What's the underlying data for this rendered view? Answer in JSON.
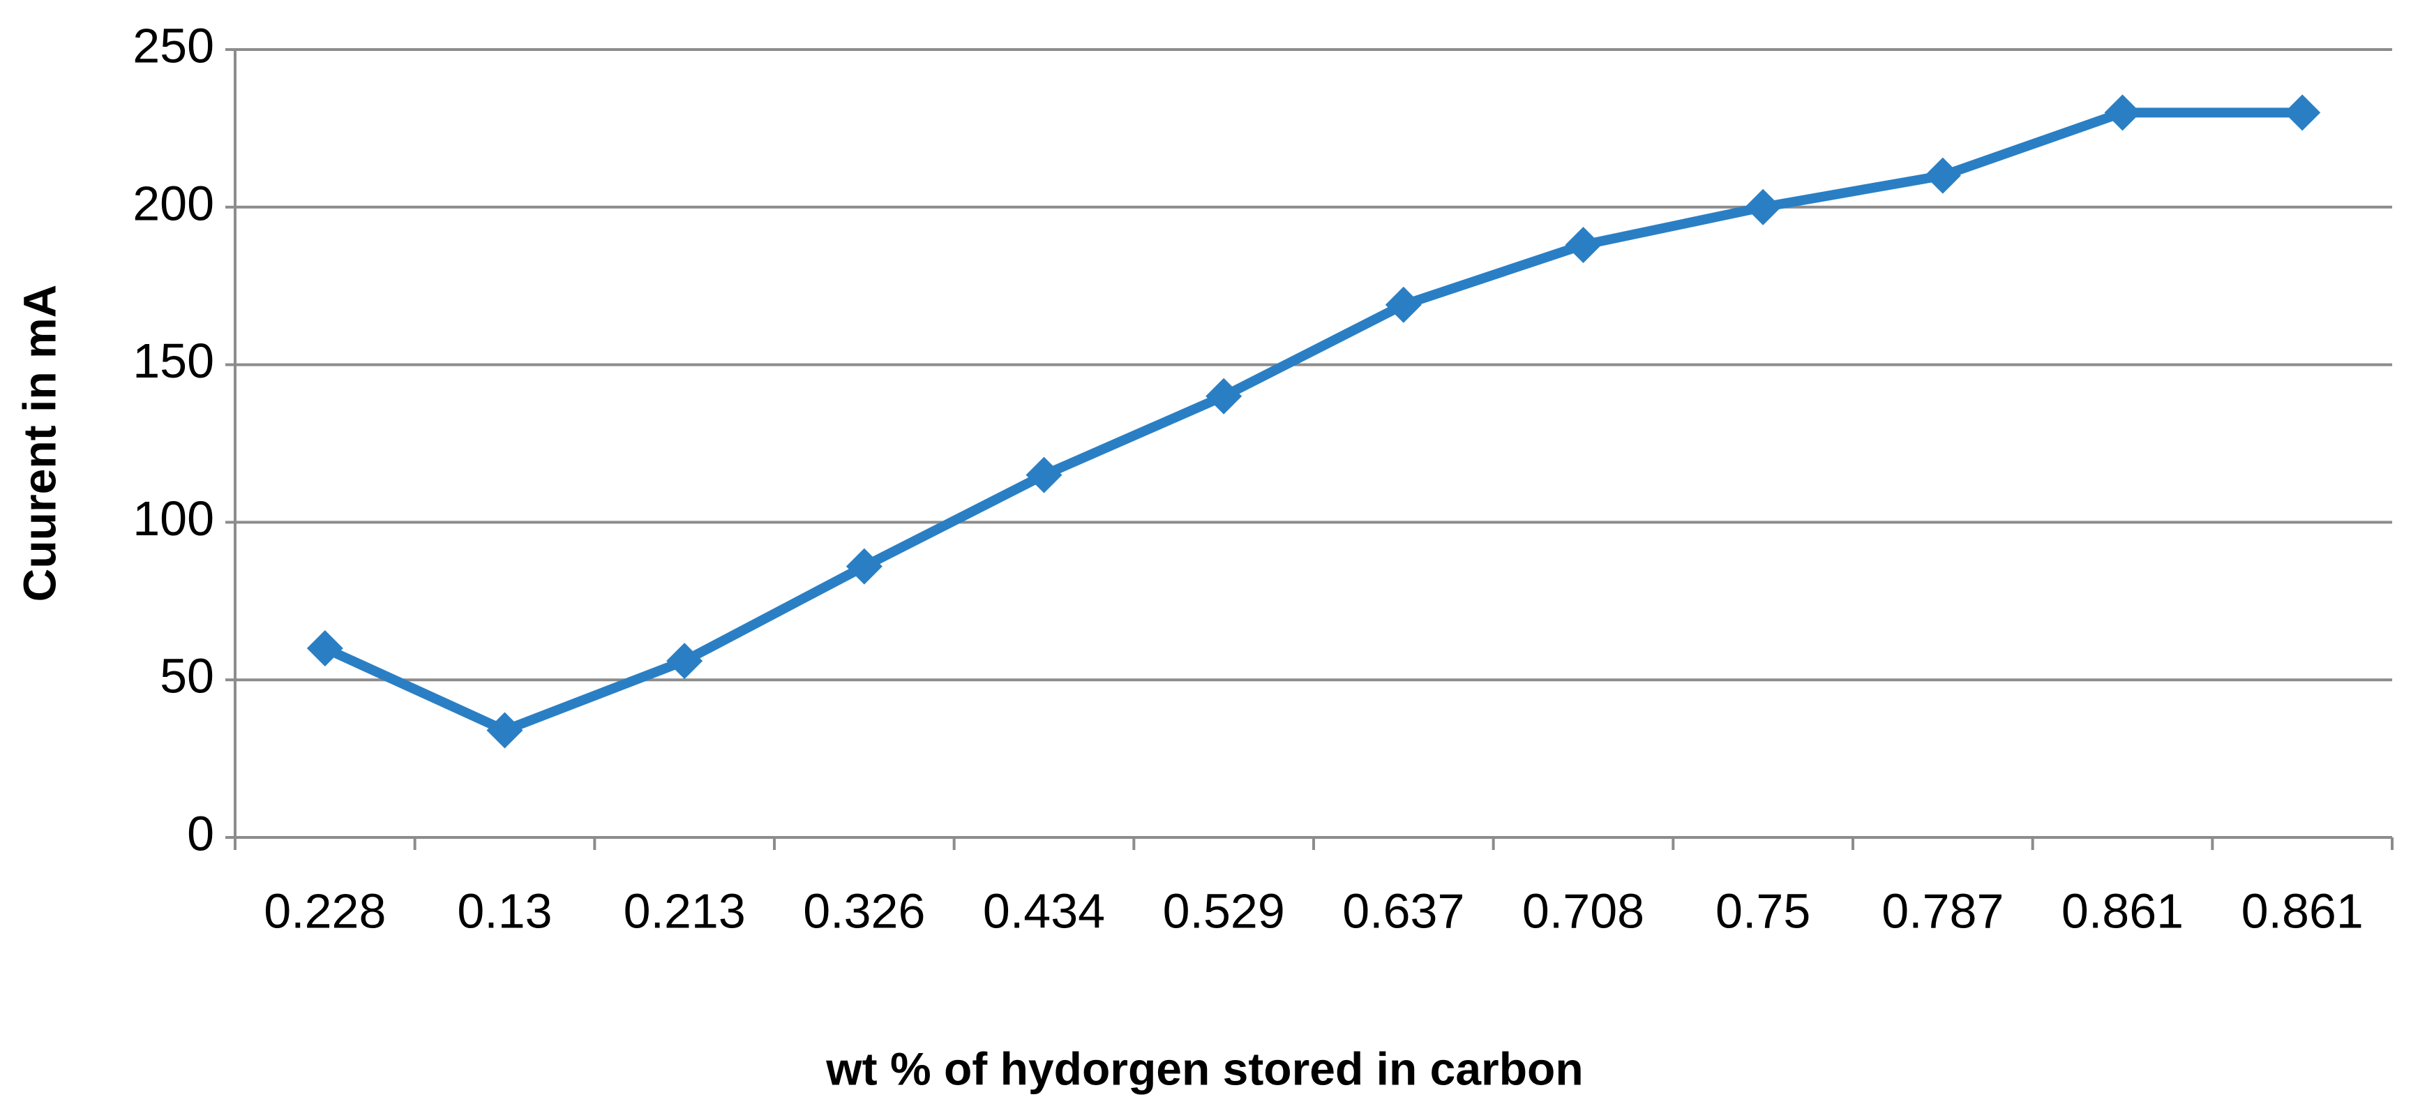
{
  "chart_data": {
    "type": "line",
    "x_label": "wt % of hydorgen stored in carbon",
    "y_label": "Cuurent in mA",
    "categories": [
      "0.228",
      "0.13",
      "0.213",
      "0.326",
      "0.434",
      "0.529",
      "0.637",
      "0.708",
      "0.75",
      "0.787",
      "0.861",
      "0.861"
    ],
    "values": [
      60,
      34,
      56,
      86,
      115,
      140,
      169,
      188,
      200,
      210,
      230,
      230
    ],
    "color": "#2a7fc4",
    "marker": "diamond",
    "ylim": [
      0,
      250
    ],
    "yticks": [
      0,
      50,
      100,
      150,
      200,
      250
    ],
    "grid": true
  }
}
